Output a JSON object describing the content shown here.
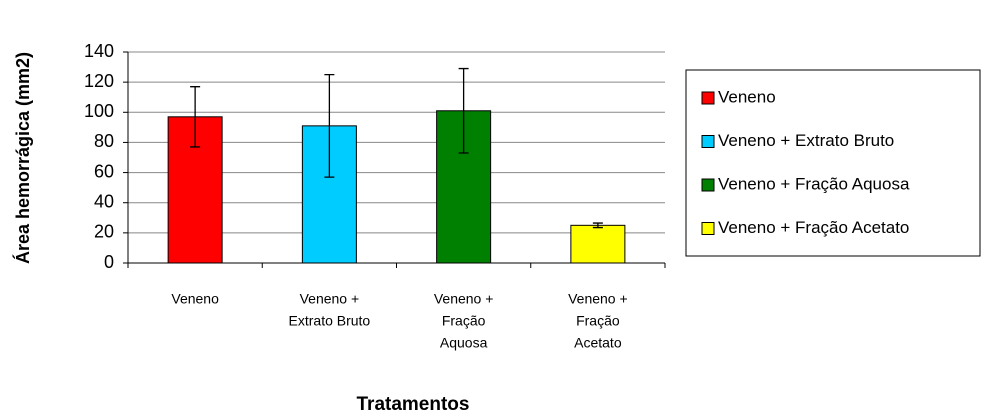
{
  "chart_data": {
    "type": "bar",
    "y_label": "Área hemorrágica (mm2)",
    "x_label": "Tratamentos",
    "categories": [
      [
        "Veneno"
      ],
      [
        "Veneno +",
        "Extrato Bruto"
      ],
      [
        "Veneno +",
        "Fração",
        "Aquosa"
      ],
      [
        "Veneno +",
        "Fração",
        "Acetato"
      ]
    ],
    "values": [
      97,
      91,
      101,
      25
    ],
    "errors": [
      20,
      34,
      28,
      1.5
    ],
    "colors": [
      "#ff0000",
      "#00ccff",
      "#008000",
      "#ffff00"
    ],
    "legend": [
      "Veneno",
      "Veneno + Extrato Bruto",
      "Veneno + Fração Aquosa",
      "Veneno + Fração Acetato"
    ],
    "legend_position": "right",
    "ylim": [
      0,
      140
    ],
    "yticks": [
      0,
      20,
      40,
      60,
      80,
      100,
      120,
      140
    ],
    "grid": true
  }
}
